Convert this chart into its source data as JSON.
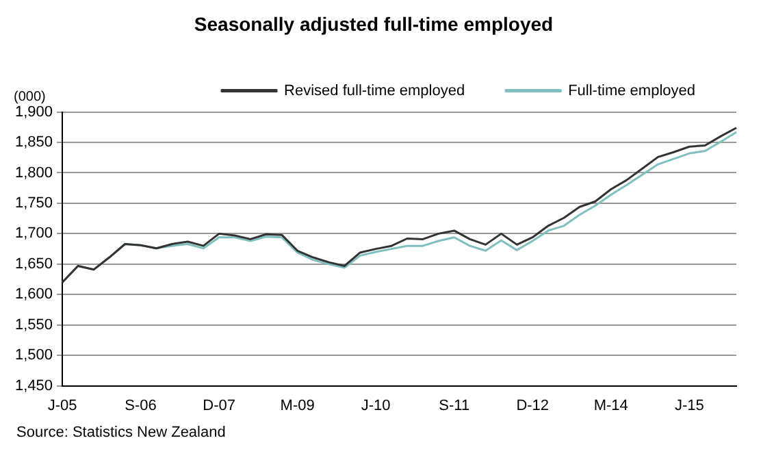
{
  "chart_data": {
    "type": "line",
    "title": "Seasonally adjusted full-time employed",
    "ylabel": "(000)",
    "categories": [
      "J-05",
      null,
      null,
      null,
      null,
      "S-06",
      null,
      null,
      null,
      null,
      "D-07",
      null,
      null,
      null,
      null,
      "M-09",
      null,
      null,
      null,
      null,
      "J-10",
      null,
      null,
      null,
      null,
      "S-11",
      null,
      null,
      null,
      null,
      "D-12",
      null,
      null,
      null,
      null,
      "M-14",
      null,
      null,
      null,
      null,
      "J-15",
      null,
      null,
      null
    ],
    "series": [
      {
        "name": "Revised full-time employed",
        "color": "#333333",
        "values": [
          1620,
          1647,
          1641,
          1661,
          1683,
          1681,
          1676,
          1683,
          1687,
          1680,
          1700,
          1697,
          1691,
          1699,
          1698,
          1672,
          1661,
          1653,
          1647,
          1669,
          1675,
          1680,
          1692,
          1691,
          1700,
          1705,
          1691,
          1682,
          1700,
          1682,
          1694,
          1713,
          1726,
          1744,
          1753,
          1773,
          1788,
          1807,
          1826,
          1834,
          1843,
          1845,
          1860,
          1874
        ]
      },
      {
        "name": "Full-time employed",
        "color": "#7fbfbf",
        "values": [
          1620,
          1647,
          1641,
          1661,
          1683,
          1681,
          1676,
          1680,
          1683,
          1676,
          1694,
          1694,
          1688,
          1695,
          1694,
          1669,
          1657,
          1650,
          1644,
          1664,
          1670,
          1675,
          1680,
          1680,
          1688,
          1694,
          1680,
          1672,
          1689,
          1673,
          1688,
          1705,
          1713,
          1731,
          1746,
          1764,
          1780,
          1797,
          1814,
          1823,
          1832,
          1836,
          1851,
          1867
        ]
      }
    ],
    "ylim": [
      1450,
      1900
    ],
    "yticks": [
      {
        "value": 1450,
        "label": "1,450"
      },
      {
        "value": 1500,
        "label": "1,500"
      },
      {
        "value": 1550,
        "label": "1,550"
      },
      {
        "value": 1600,
        "label": "1,600"
      },
      {
        "value": 1650,
        "label": "1,650"
      },
      {
        "value": 1700,
        "label": "1,700"
      },
      {
        "value": 1750,
        "label": "1,750"
      },
      {
        "value": 1800,
        "label": "1,800"
      },
      {
        "value": 1850,
        "label": "1,850"
      },
      {
        "value": 1900,
        "label": "1,900"
      }
    ],
    "grid": "y",
    "legend": "top",
    "marker": "none",
    "line_style": "solid",
    "annotations": [
      "Source: Statistics New Zealand"
    ]
  }
}
